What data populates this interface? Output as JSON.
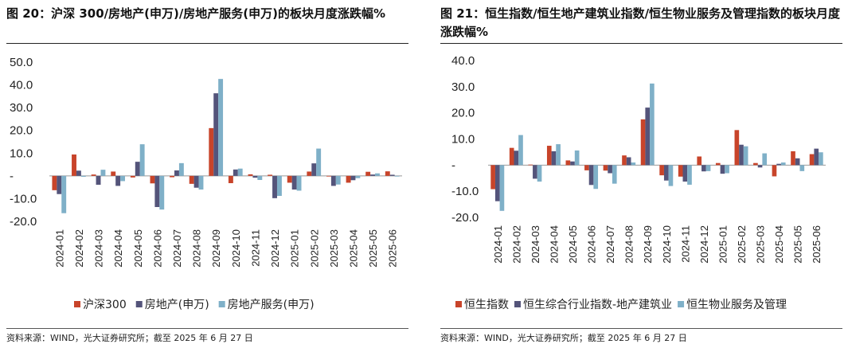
{
  "colors": {
    "series1": "#c8442a",
    "series2": "#54547a",
    "series3": "#7fb0c8"
  },
  "chart_data": [
    {
      "type": "bar",
      "title": "图 20：沪深 300/房地产(申万)/房地产服务(申万)的板块月度涨跌幅%",
      "source": "资料来源：WIND，光大证券研究所；截至 2025 年 6 月 27 日",
      "categories": [
        "2024-01",
        "2024-02",
        "2024-03",
        "2024-04",
        "2024-05",
        "2024-06",
        "2024-07",
        "2024-08",
        "2024-09",
        "2024-10",
        "2024-11",
        "2024-12",
        "2025-01",
        "2025-02",
        "2025-03",
        "2025-04",
        "2025-05",
        "2025-06"
      ],
      "yticks": [
        "50.0",
        "40.0",
        "30.0",
        "20.0",
        "10.0",
        "-",
        "-10.0",
        "-20.0"
      ],
      "ylim": [
        -20,
        50
      ],
      "series": [
        {
          "name": "沪深300",
          "values": [
            -6.3,
            9.4,
            0.6,
            1.9,
            -0.7,
            -3.3,
            -0.6,
            -3.5,
            21.0,
            -3.2,
            0.7,
            0.5,
            -3.0,
            1.9,
            -0.1,
            -3.0,
            1.8,
            2.0
          ]
        },
        {
          "name": "房地产(申万)",
          "values": [
            -8.0,
            2.3,
            -3.9,
            -4.4,
            6.2,
            -13.7,
            2.4,
            -5.2,
            36.3,
            2.8,
            -0.8,
            -9.8,
            -6.0,
            5.5,
            -4.4,
            -1.9,
            0.6,
            0.5
          ]
        },
        {
          "name": "房地产服务(申万)",
          "values": [
            -16.4,
            -0.4,
            2.7,
            -2.3,
            13.9,
            -14.8,
            5.6,
            -6.0,
            42.6,
            3.2,
            -1.8,
            -8.8,
            -6.5,
            12.0,
            -3.8,
            -1.0,
            1.1,
            -0.3
          ]
        }
      ]
    },
    {
      "type": "bar",
      "title": "图 21：恒生指数/恒生地产建筑业指数/恒生物业服务及管理指数的板块月度涨跌幅%",
      "source": "资料来源：WIND，光大证券研究所；截至 2025 年 6 月 27 日",
      "categories": [
        "2024-01",
        "2024-02",
        "2024-03",
        "2024-04",
        "2024-05",
        "2024-06",
        "2024-07",
        "2024-08",
        "2024-09",
        "2024-10",
        "2024-11",
        "2024-12",
        "2025-01",
        "2025-02",
        "2025-03",
        "2025-04",
        "2025-05",
        "2025-06"
      ],
      "yticks": [
        "40.0",
        "30.0",
        "20.0",
        "10.0",
        "-",
        "-10.0",
        "-20.0"
      ],
      "ylim": [
        -20,
        40
      ],
      "series": [
        {
          "name": "恒生指数",
          "values": [
            -9.2,
            6.6,
            0.2,
            7.4,
            1.8,
            -2.0,
            -2.1,
            3.7,
            17.5,
            -3.9,
            -4.4,
            3.3,
            0.8,
            13.4,
            0.8,
            -4.3,
            5.3,
            4.2
          ]
        },
        {
          "name": "恒生综合行业指数-地产建筑业",
          "values": [
            -13.8,
            5.5,
            -5.2,
            5.3,
            1.4,
            -7.6,
            -3.1,
            3.0,
            22.0,
            -5.9,
            -6.3,
            -2.4,
            -3.3,
            7.8,
            -0.9,
            0.5,
            2.6,
            6.3
          ]
        },
        {
          "name": "恒生物业服务及管理",
          "values": [
            -17.5,
            11.5,
            -6.3,
            8.0,
            5.6,
            -9.1,
            -7.1,
            1.0,
            31.2,
            -8.0,
            -7.5,
            -2.3,
            -3.1,
            7.2,
            4.5,
            1.0,
            -2.3,
            4.9
          ]
        }
      ]
    }
  ]
}
